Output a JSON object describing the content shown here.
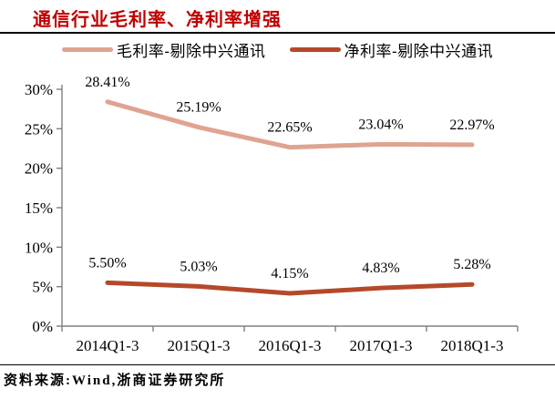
{
  "header": {
    "title": "通信行业毛利率、净利率增强"
  },
  "legend": [
    {
      "label": "毛利率-剔除中兴通讯",
      "color": "#DEA491"
    },
    {
      "label": "净利率-剔除中兴通讯",
      "color": "#B4492A"
    }
  ],
  "footer": {
    "source": "资料来源:Wind,浙商证券研究所"
  },
  "colors": {
    "title": "#C00000",
    "axis": "#808080",
    "tick_label": "#000000",
    "data_label": "#000000",
    "top_rule": "#000000",
    "bottom_rule": "#000000",
    "series1": "#DEA491",
    "series2": "#B4492A"
  },
  "chart_data": {
    "type": "line",
    "title": "通信行业毛利率、净利率增强",
    "categories": [
      "2014Q1-3",
      "2015Q1-3",
      "2016Q1-3",
      "2017Q1-3",
      "2018Q1-3"
    ],
    "series": [
      {
        "name": "毛利率-剔除中兴通讯",
        "color": "#DEA491",
        "values": [
          28.41,
          25.19,
          22.65,
          23.04,
          22.97
        ],
        "labels": [
          "28.41%",
          "25.19%",
          "22.65%",
          "23.04%",
          "22.97%"
        ]
      },
      {
        "name": "净利率-剔除中兴通讯",
        "color": "#B4492A",
        "values": [
          5.5,
          5.03,
          4.15,
          4.83,
          5.28
        ],
        "labels": [
          "5.50%",
          "5.03%",
          "4.15%",
          "4.83%",
          "5.28%"
        ]
      }
    ],
    "xlabel": "",
    "ylabel": "",
    "ylim": [
      0,
      30
    ],
    "ytick_step": 5,
    "ytick_labels": [
      "0%",
      "5%",
      "10%",
      "15%",
      "20%",
      "25%",
      "30%"
    ],
    "grid": false,
    "legend_position": "top",
    "source_note": "资料来源:Wind,浙商证券研究所"
  }
}
